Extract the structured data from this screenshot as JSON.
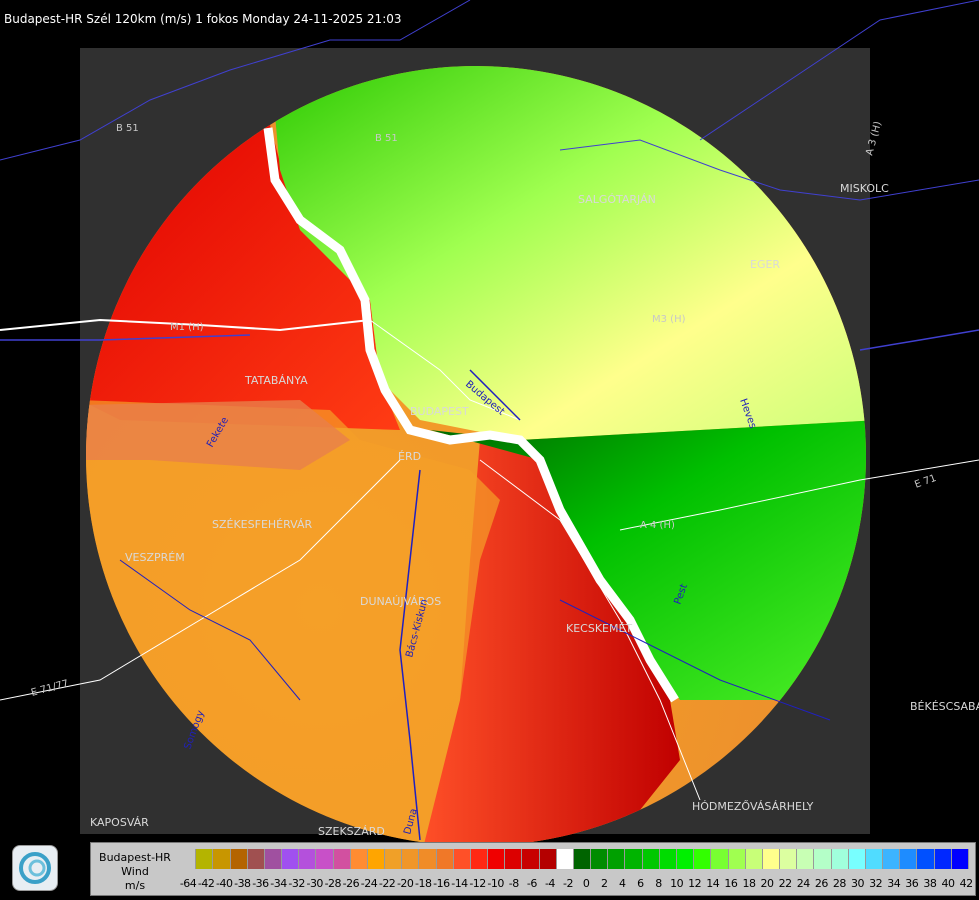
{
  "header": {
    "title": "Budapest-HR Szél 120km (m/s) 1 fokos Monday 24-11-2025 21:03"
  },
  "map": {
    "places": [
      {
        "name": "SALGÓTARJÁN",
        "id": "salgotarjan"
      },
      {
        "name": "EGER",
        "id": "eger"
      },
      {
        "name": "MISKOLC",
        "id": "miskolc"
      },
      {
        "name": "TATABÁNYA",
        "id": "tatabanya"
      },
      {
        "name": "BUDAPEST",
        "id": "budapest"
      },
      {
        "name": "ÉRD",
        "id": "erd"
      },
      {
        "name": "SZÉKESFEHÉRVÁR",
        "id": "szekesfehervar"
      },
      {
        "name": "VESZPRÉM",
        "id": "veszprem"
      },
      {
        "name": "DUNAÚJVÁROS",
        "id": "dunaujvaros"
      },
      {
        "name": "KECSKEMÉT",
        "id": "kecskemet"
      },
      {
        "name": "BÉKÉSCSABA",
        "id": "bekescsaba"
      },
      {
        "name": "HÓDMEZŐVÁSÁRHELY",
        "id": "hodmezovasarhely"
      },
      {
        "name": "KAPOSVÁR",
        "id": "kaposvar"
      },
      {
        "name": "SZEKSZÁRD",
        "id": "szekszard"
      }
    ],
    "roads": [
      "B 51",
      "B 51",
      "A 3 (H)",
      "E 71",
      "A 4 (H)",
      "E 71/77",
      "M1 (H)",
      "M3 (H)"
    ],
    "rivers": [
      "Budapest",
      "Pest",
      "Fekete",
      "Bács-Kiskun",
      "Heves",
      "Somogy",
      "Duna"
    ]
  },
  "legend": {
    "station": "Budapest-HR",
    "quantity": "Wind",
    "unit": "m/s",
    "colors": [
      "#c8c8c8",
      "#b4b400",
      "#c89600",
      "#b46400",
      "#a05050",
      "#a050a0",
      "#a050f0",
      "#b450dc",
      "#c850c8",
      "#d250a0",
      "#ff8c32",
      "#ffa500",
      "#f0a028",
      "#f09628",
      "#f08c28",
      "#f07828",
      "#ff5028",
      "#ff2814",
      "#f00000",
      "#dc0000",
      "#c80000",
      "#b40000",
      "#ffffff",
      "#006400",
      "#008c00",
      "#00a000",
      "#00b400",
      "#00c800",
      "#00dc00",
      "#00f000",
      "#32ff00",
      "#78ff32",
      "#a0ff50",
      "#c8ff78",
      "#ffff8c",
      "#dcffa0",
      "#c8ffb4",
      "#b4ffc8",
      "#a0ffdc",
      "#78ffff",
      "#50dcff",
      "#3cb4ff",
      "#1e8cff",
      "#0050ff",
      "#0028ff",
      "#0000ff"
    ],
    "ticks": [
      "-64",
      "-42",
      "-40",
      "-38",
      "-36",
      "-34",
      "-32",
      "-30",
      "-28",
      "-26",
      "-24",
      "-22",
      "-20",
      "-18",
      "-16",
      "-14",
      "-12",
      "-10",
      "-8",
      "-6",
      "-4",
      "-2",
      "0",
      "2",
      "4",
      "6",
      "8",
      "10",
      "12",
      "14",
      "16",
      "18",
      "20",
      "22",
      "24",
      "26",
      "28",
      "30",
      "32",
      "34",
      "36",
      "38",
      "40",
      "42"
    ]
  }
}
